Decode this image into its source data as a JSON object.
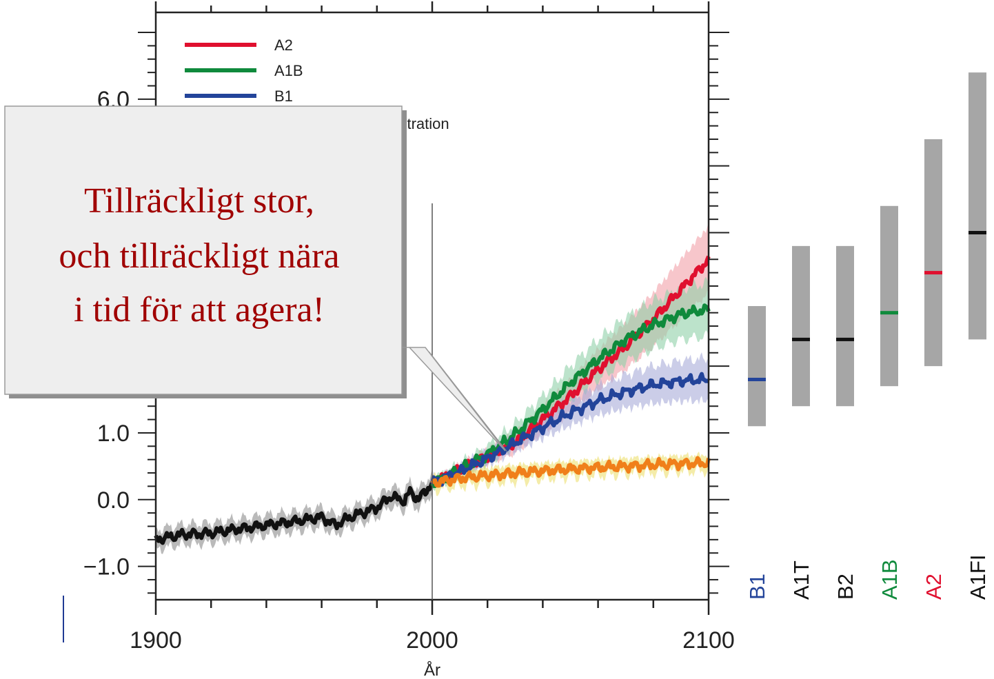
{
  "chart_data": {
    "type": "line",
    "xlabel": "År",
    "ylabel": "",
    "xlim": [
      1900,
      2100
    ],
    "ylim": [
      -1.5,
      7.3
    ],
    "x_ticks": [
      1900,
      2000,
      2100
    ],
    "x_tick_labels": [
      "1900",
      "2000",
      "2100"
    ],
    "y_ticks": [
      -1.0,
      0.0,
      1.0,
      6.0
    ],
    "y_tick_labels": [
      "−1.0",
      "0.0",
      "1.0",
      "6.0"
    ],
    "legend_placement": "top-left",
    "legend": [
      {
        "name": "A2",
        "color": "#e0102f"
      },
      {
        "name": "A1B",
        "color": "#0f8a3c"
      },
      {
        "name": "B1",
        "color": "#23449a"
      }
    ],
    "partial_legend_text": "entration",
    "series": [
      {
        "name": "",
        "color": "#111111",
        "band_color": "#8c8c8c",
        "x": [
          1900,
          1910,
          1920,
          1930,
          1940,
          1950,
          1960,
          1965,
          1970,
          1980,
          1985,
          1990,
          1992,
          1995,
          2000
        ],
        "y": [
          -0.6,
          -0.52,
          -0.5,
          -0.44,
          -0.38,
          -0.33,
          -0.26,
          -0.38,
          -0.27,
          -0.12,
          0.05,
          -0.02,
          0.12,
          0.0,
          0.25
        ],
        "band_half_width": 0.15
      },
      {
        "name": "A2",
        "color": "#e0102f",
        "band_color": "#f2a0a8",
        "x": [
          2000,
          2010,
          2020,
          2030,
          2040,
          2050,
          2060,
          2070,
          2080,
          2090,
          2100
        ],
        "y": [
          0.25,
          0.45,
          0.65,
          0.85,
          1.2,
          1.55,
          1.95,
          2.3,
          2.7,
          3.15,
          3.6
        ],
        "band_half_width": [
          0.05,
          0.08,
          0.12,
          0.15,
          0.2,
          0.25,
          0.3,
          0.35,
          0.4,
          0.45,
          0.5
        ]
      },
      {
        "name": "A1B",
        "color": "#0f8a3c",
        "band_color": "#8fd0a8",
        "x": [
          2000,
          2010,
          2020,
          2030,
          2040,
          2050,
          2060,
          2070,
          2080,
          2090,
          2100
        ],
        "y": [
          0.25,
          0.45,
          0.68,
          0.98,
          1.35,
          1.75,
          2.1,
          2.4,
          2.62,
          2.78,
          2.85
        ],
        "band_half_width": [
          0.05,
          0.08,
          0.12,
          0.16,
          0.2,
          0.25,
          0.3,
          0.33,
          0.36,
          0.38,
          0.4
        ]
      },
      {
        "name": "B1",
        "color": "#23449a",
        "band_color": "#a8acd8",
        "x": [
          2000,
          2010,
          2020,
          2030,
          2040,
          2050,
          2060,
          2070,
          2080,
          2090,
          2100
        ],
        "y": [
          0.25,
          0.42,
          0.62,
          0.85,
          1.08,
          1.3,
          1.48,
          1.62,
          1.72,
          1.78,
          1.8
        ],
        "band_half_width": [
          0.05,
          0.07,
          0.1,
          0.13,
          0.16,
          0.19,
          0.22,
          0.25,
          0.28,
          0.3,
          0.32
        ]
      },
      {
        "name": "",
        "color": "#f07f1a",
        "band_color": "#ece070",
        "x": [
          2000,
          2010,
          2020,
          2030,
          2040,
          2050,
          2060,
          2070,
          2080,
          2090,
          2100
        ],
        "y": [
          0.25,
          0.32,
          0.36,
          0.4,
          0.43,
          0.46,
          0.48,
          0.5,
          0.52,
          0.54,
          0.55
        ],
        "band_half_width": 0.12
      }
    ],
    "scenario_bars": [
      {
        "name": "B1",
        "low": 1.1,
        "high": 2.9,
        "best": 1.8,
        "best_color": "#23449a",
        "label_color": "#23449a"
      },
      {
        "name": "A1T",
        "low": 1.4,
        "high": 3.8,
        "best": 2.4,
        "best_color": "#111111",
        "label_color": "#111111"
      },
      {
        "name": "B2",
        "low": 1.4,
        "high": 3.8,
        "best": 2.4,
        "best_color": "#111111",
        "label_color": "#111111"
      },
      {
        "name": "A1B",
        "low": 1.7,
        "high": 4.4,
        "best": 2.8,
        "best_color": "#0f8a3c",
        "label_color": "#0f8a3c"
      },
      {
        "name": "A2",
        "low": 2.0,
        "high": 5.4,
        "best": 3.4,
        "best_color": "#e0102f",
        "label_color": "#e0102f"
      },
      {
        "name": "A1FI",
        "low": 2.4,
        "high": 6.4,
        "best": 4.0,
        "best_color": "#111111",
        "label_color": "#111111"
      }
    ],
    "bar_color": "#a6a6a6"
  },
  "callout": {
    "lines": [
      "Tillräckligt stor,",
      "och tillräckligt nära",
      "i tid för att agera!"
    ]
  }
}
